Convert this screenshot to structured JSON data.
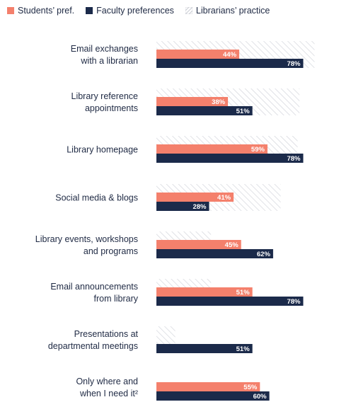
{
  "chart_data": {
    "type": "bar",
    "orientation": "horizontal",
    "xlim": [
      0,
      100
    ],
    "legend": {
      "placement": "top-left",
      "students_label": "Students’ pref.",
      "faculty_label": "Faculty preferences",
      "librarians_label": "Librarians’ practice"
    },
    "colors": {
      "students": "#f4806c",
      "faculty": "#1b2a4a",
      "librarians_hatch": "#d4d6dc"
    },
    "categories": [
      {
        "label_lines": [
          "Email exchanges",
          "with a librarian"
        ],
        "students": 44,
        "students_label": "44%",
        "faculty": 78,
        "faculty_label": "78%",
        "librarians": 84
      },
      {
        "label_lines": [
          "Library reference",
          "appointments"
        ],
        "students": 38,
        "students_label": "38%",
        "faculty": 51,
        "faculty_label": "51%",
        "librarians": 76
      },
      {
        "label_lines": [
          "Library homepage"
        ],
        "students": 59,
        "students_label": "59%",
        "faculty": 78,
        "faculty_label": "78%",
        "librarians": 75
      },
      {
        "label_lines": [
          "Social media & blogs"
        ],
        "students": 41,
        "students_label": "41%",
        "faculty": 28,
        "faculty_label": "28%",
        "librarians": 66
      },
      {
        "label_lines": [
          "Library events, workshops",
          "and programs"
        ],
        "students": 45,
        "students_label": "45%",
        "faculty": 62,
        "faculty_label": "62%",
        "librarians": 29
      },
      {
        "label_lines": [
          "Email announcements",
          "from library"
        ],
        "students": 51,
        "students_label": "51%",
        "faculty": 78,
        "faculty_label": "78%",
        "librarians": 29
      },
      {
        "label_lines": [
          "Presentations at",
          "departmental meetings"
        ],
        "students": null,
        "students_label": "",
        "faculty": 51,
        "faculty_label": "51%",
        "librarians": 10
      },
      {
        "label_lines": [
          "Only where and",
          "when I need it²"
        ],
        "students": 55,
        "students_label": "55%",
        "faculty": 60,
        "faculty_label": "60%",
        "librarians": null
      }
    ]
  }
}
